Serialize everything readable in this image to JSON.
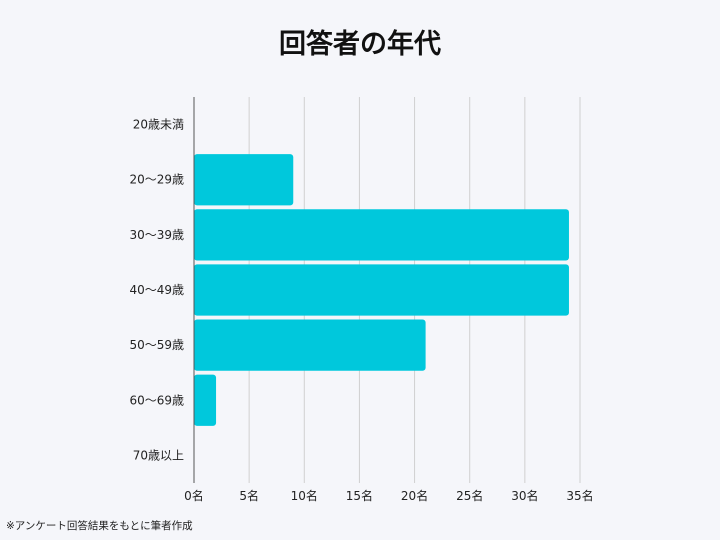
{
  "chart_data": {
    "type": "bar",
    "orientation": "horizontal",
    "title": "回答者の年代",
    "categories": [
      "20歳未満",
      "20～29歳",
      "30～39歳",
      "40～49歳",
      "50～59歳",
      "60～69歳",
      "70歳以上"
    ],
    "values": [
      0,
      9,
      34,
      34,
      21,
      2,
      0
    ],
    "xlim": [
      0,
      35
    ],
    "x_ticks": [
      "0名",
      "5名",
      "10名",
      "15名",
      "20名",
      "25名",
      "30名",
      "35名"
    ],
    "grid": true,
    "bar_color": "#00c8dc",
    "grid_color": "#d0d0d0",
    "note": "※アンケート回答結果をもとに筆者作成"
  }
}
